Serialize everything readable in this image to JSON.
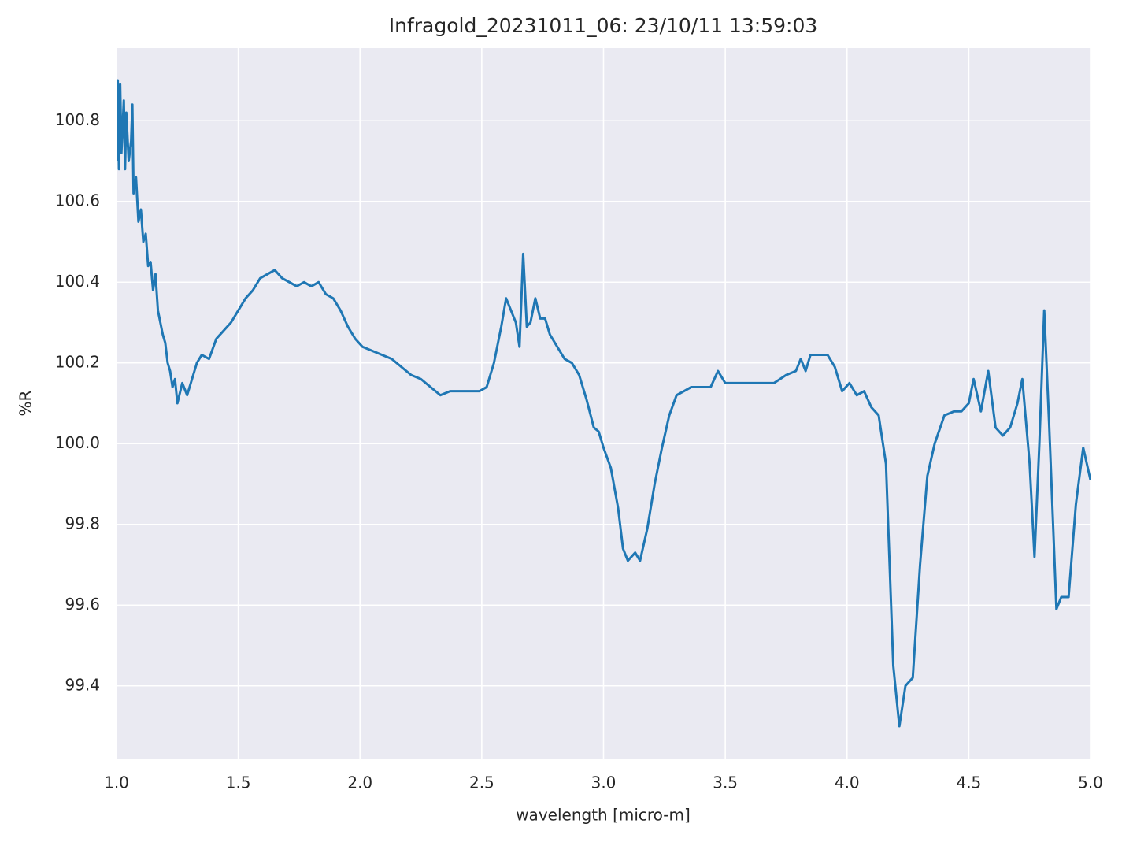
{
  "chart_data": {
    "type": "line",
    "title": "Infragold_20231011_06:  23/10/11 13:59:03",
    "x_label": "wavelength [micro-m]",
    "y_label": "%R",
    "color": "#1f77b4",
    "grid": true,
    "xlim": [
      1.0,
      5.0
    ],
    "ylim": [
      99.22,
      100.98
    ],
    "xticks": [
      {
        "value": 1,
        "label": "1.0"
      },
      1.5,
      {
        "value": 2,
        "label": "2.0"
      },
      2.5,
      {
        "value": 3,
        "label": "3.0"
      },
      3.5,
      {
        "value": 4,
        "label": "4.0"
      },
      4.5,
      {
        "value": 5,
        "label": "5.0"
      }
    ],
    "yticks": [
      99.4,
      99.6,
      99.8,
      {
        "value": 100,
        "label": "100.0"
      },
      100.2,
      100.4,
      100.6,
      100.8
    ],
    "x": [
      1.0,
      1.005,
      1.01,
      1.015,
      1.02,
      1.03,
      1.035,
      1.04,
      1.05,
      1.06,
      1.065,
      1.07,
      1.08,
      1.09,
      1.1,
      1.11,
      1.12,
      1.13,
      1.14,
      1.15,
      1.16,
      1.17,
      1.18,
      1.19,
      1.2,
      1.21,
      1.22,
      1.23,
      1.24,
      1.25,
      1.27,
      1.29,
      1.31,
      1.33,
      1.35,
      1.38,
      1.41,
      1.44,
      1.47,
      1.5,
      1.53,
      1.56,
      1.59,
      1.62,
      1.65,
      1.68,
      1.71,
      1.74,
      1.77,
      1.8,
      1.83,
      1.86,
      1.89,
      1.92,
      1.95,
      1.98,
      2.01,
      2.05,
      2.09,
      2.13,
      2.17,
      2.21,
      2.25,
      2.29,
      2.33,
      2.37,
      2.41,
      2.45,
      2.49,
      2.52,
      2.55,
      2.58,
      2.6,
      2.62,
      2.64,
      2.655,
      2.67,
      2.685,
      2.7,
      2.72,
      2.74,
      2.76,
      2.78,
      2.81,
      2.84,
      2.87,
      2.9,
      2.93,
      2.96,
      2.98,
      3.0,
      3.03,
      3.06,
      3.08,
      3.1,
      3.13,
      3.15,
      3.18,
      3.21,
      3.24,
      3.27,
      3.3,
      3.33,
      3.36,
      3.4,
      3.44,
      3.47,
      3.5,
      3.55,
      3.6,
      3.65,
      3.7,
      3.75,
      3.79,
      3.81,
      3.83,
      3.85,
      3.88,
      3.92,
      3.95,
      3.98,
      4.01,
      4.04,
      4.07,
      4.1,
      4.13,
      4.16,
      4.19,
      4.215,
      4.24,
      4.27,
      4.3,
      4.33,
      4.36,
      4.4,
      4.44,
      4.47,
      4.5,
      4.52,
      4.55,
      4.58,
      4.61,
      4.64,
      4.67,
      4.7,
      4.72,
      4.75,
      4.77,
      4.79,
      4.81,
      4.83,
      4.86,
      4.88,
      4.91,
      4.94,
      4.97,
      5.0
    ],
    "values": [
      100.7,
      100.9,
      100.68,
      100.89,
      100.72,
      100.85,
      100.68,
      100.82,
      100.7,
      100.75,
      100.84,
      100.62,
      100.66,
      100.55,
      100.58,
      100.5,
      100.52,
      100.44,
      100.45,
      100.38,
      100.42,
      100.33,
      100.3,
      100.27,
      100.25,
      100.2,
      100.18,
      100.14,
      100.16,
      100.1,
      100.15,
      100.12,
      100.16,
      100.2,
      100.22,
      100.21,
      100.26,
      100.28,
      100.3,
      100.33,
      100.36,
      100.38,
      100.41,
      100.42,
      100.43,
      100.41,
      100.4,
      100.39,
      100.4,
      100.39,
      100.4,
      100.37,
      100.36,
      100.33,
      100.29,
      100.26,
      100.24,
      100.23,
      100.22,
      100.21,
      100.19,
      100.17,
      100.16,
      100.14,
      100.12,
      100.13,
      100.13,
      100.13,
      100.13,
      100.14,
      100.2,
      100.29,
      100.36,
      100.33,
      100.3,
      100.24,
      100.47,
      100.29,
      100.3,
      100.36,
      100.31,
      100.31,
      100.27,
      100.24,
      100.21,
      100.2,
      100.17,
      100.11,
      100.04,
      100.03,
      99.99,
      99.94,
      99.84,
      99.74,
      99.71,
      99.73,
      99.71,
      99.79,
      99.9,
      99.99,
      100.07,
      100.12,
      100.13,
      100.14,
      100.14,
      100.14,
      100.18,
      100.15,
      100.15,
      100.15,
      100.15,
      100.15,
      100.17,
      100.18,
      100.21,
      100.18,
      100.22,
      100.22,
      100.22,
      100.19,
      100.13,
      100.15,
      100.12,
      100.13,
      100.09,
      100.07,
      99.95,
      99.45,
      99.3,
      99.4,
      99.42,
      99.7,
      99.92,
      100.0,
      100.07,
      100.08,
      100.08,
      100.1,
      100.16,
      100.08,
      100.18,
      100.04,
      100.02,
      100.04,
      100.1,
      100.16,
      99.95,
      99.72,
      100.0,
      100.33,
      100.05,
      99.59,
      99.62,
      99.62,
      99.85,
      99.99,
      99.91
    ]
  }
}
